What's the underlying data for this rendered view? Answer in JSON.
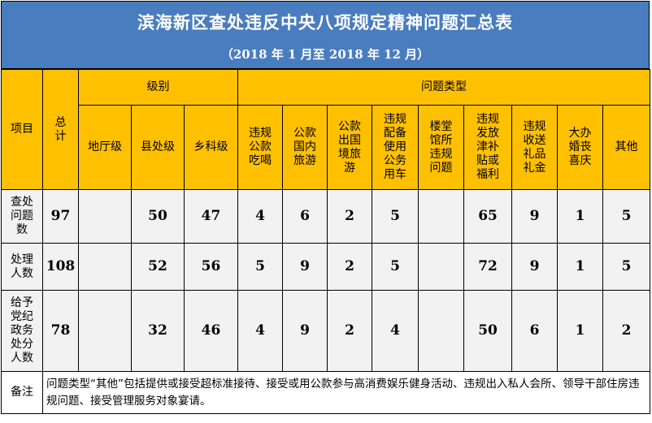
{
  "title": "滨海新区查处违反中央八项规定精神问题汇总表",
  "subtitle": "（2018 年 1 月至 2018 年 12 月）",
  "headers": {
    "project": "项目",
    "total": "总计",
    "level_group": "级别",
    "levels": [
      "地厅级",
      "县处级",
      "乡科级"
    ],
    "type_group": "问题类型",
    "types": [
      "违规公款吃喝",
      "公款国内旅游",
      "公款出国境旅游",
      "违规配备使用公务用车",
      "楼堂馆所违规问题",
      "违规发放津补贴或福利",
      "违规收送礼品礼金",
      "大办婚丧喜庆",
      "其他"
    ]
  },
  "rows": [
    {
      "label": "查处问题数",
      "total": "97",
      "levels": [
        "",
        "50",
        "47"
      ],
      "types": [
        "4",
        "6",
        "2",
        "5",
        "",
        "65",
        "9",
        "1",
        "5"
      ]
    },
    {
      "label": "处理人数",
      "total": "108",
      "levels": [
        "",
        "52",
        "56"
      ],
      "types": [
        "5",
        "9",
        "2",
        "5",
        "",
        "72",
        "9",
        "1",
        "5"
      ]
    },
    {
      "label": "给予党纪政务处分人数",
      "total": "78",
      "levels": [
        "",
        "32",
        "46"
      ],
      "types": [
        "4",
        "9",
        "2",
        "4",
        "",
        "50",
        "6",
        "1",
        "2"
      ]
    }
  ],
  "note": {
    "label": "备注",
    "text": "问题类型“其他”包括提供或接受超标准接待、接受或用公款参与高消费娱乐健身活动、违规出入私人会所、领导干部住房违规问题、接受管理服务对象宴请。"
  },
  "colors": {
    "title_bg": "#4a7dbf",
    "header_bg": "#ffc000",
    "body_bg": "#f2f2f2"
  }
}
